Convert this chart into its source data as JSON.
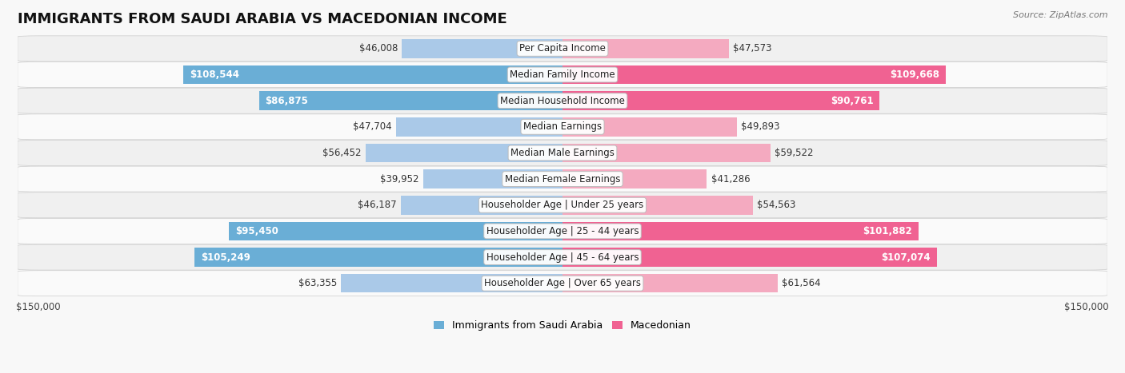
{
  "title": "IMMIGRANTS FROM SAUDI ARABIA VS MACEDONIAN INCOME",
  "source": "Source: ZipAtlas.com",
  "categories": [
    "Per Capita Income",
    "Median Family Income",
    "Median Household Income",
    "Median Earnings",
    "Median Male Earnings",
    "Median Female Earnings",
    "Householder Age | Under 25 years",
    "Householder Age | 25 - 44 years",
    "Householder Age | 45 - 64 years",
    "Householder Age | Over 65 years"
  ],
  "saudi_values": [
    46008,
    108544,
    86875,
    47704,
    56452,
    39952,
    46187,
    95450,
    105249,
    63355
  ],
  "macedonian_values": [
    47573,
    109668,
    90761,
    49893,
    59522,
    41286,
    54563,
    101882,
    107074,
    61564
  ],
  "saudi_color_large": "#6aaed6",
  "saudi_color_small": "#aac9e8",
  "macedonian_color_large": "#f06292",
  "macedonian_color_small": "#f4aac0",
  "bar_height": 0.72,
  "row_bg_even": "#f0f0f0",
  "row_bg_odd": "#fafafa",
  "max_value": 150000,
  "label_fontsize": 8.5,
  "title_fontsize": 13,
  "category_fontsize": 8.5,
  "inside_threshold": 80000,
  "legend_labels": [
    "Immigrants from Saudi Arabia",
    "Macedonian"
  ]
}
